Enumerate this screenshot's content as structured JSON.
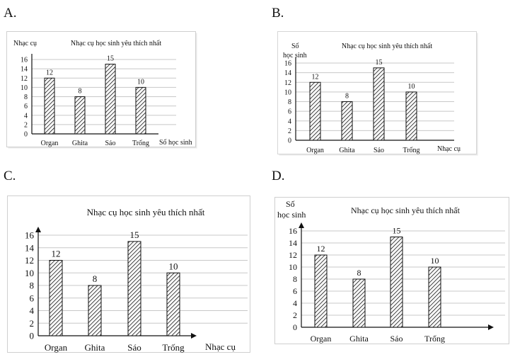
{
  "option_labels": [
    "A.",
    "B.",
    "C.",
    "D."
  ],
  "chart_data": [
    {
      "type": "bar",
      "title": "Nhạc cụ học sinh yêu thích nhất",
      "ylabel": "Nhạc cụ",
      "xlabel": "Số học sinh",
      "categories": [
        "Organ",
        "Ghita",
        "Sáo",
        "Trống"
      ],
      "values": [
        12,
        8,
        15,
        10
      ],
      "ylim": [
        0,
        16
      ],
      "yticks": [
        0,
        2,
        4,
        6,
        8,
        10,
        12,
        14,
        16
      ],
      "grid": true,
      "pattern": "diagonal-hatch"
    },
    {
      "type": "bar",
      "title": "Nhạc cụ học sinh yêu thích nhất",
      "ylabel": "Số\nhọc sinh",
      "xlabel": "Nhạc cụ",
      "categories": [
        "Organ",
        "Ghita",
        "Sáo",
        "Trống"
      ],
      "values": [
        12,
        8,
        15,
        10
      ],
      "ylim": [
        0,
        16
      ],
      "yticks": [
        0,
        2,
        4,
        6,
        8,
        10,
        12,
        14,
        16
      ],
      "grid": true,
      "pattern": "diagonal-hatch"
    },
    {
      "type": "bar",
      "title": "Nhạc cụ học sinh yêu thích nhất",
      "ylabel": "",
      "xlabel": "Nhạc cụ",
      "categories": [
        "Organ",
        "Ghita",
        "Sáo",
        "Trống"
      ],
      "values": [
        12,
        8,
        15,
        10
      ],
      "ylim": [
        0,
        16
      ],
      "yticks": [
        0,
        2,
        4,
        6,
        8,
        10,
        12,
        14,
        16
      ],
      "grid": true,
      "pattern": "diagonal-hatch"
    },
    {
      "type": "bar",
      "title": "Nhạc cụ học sinh yêu thích nhất",
      "ylabel": "Số\nhọc sinh",
      "xlabel": "",
      "categories": [
        "Organ",
        "Ghita",
        "Sáo",
        "Trống"
      ],
      "values": [
        12,
        8,
        15,
        10
      ],
      "ylim": [
        0,
        16
      ],
      "yticks": [
        0,
        2,
        4,
        6,
        8,
        10,
        12,
        14,
        16
      ],
      "grid": true,
      "pattern": "diagonal-hatch"
    }
  ]
}
